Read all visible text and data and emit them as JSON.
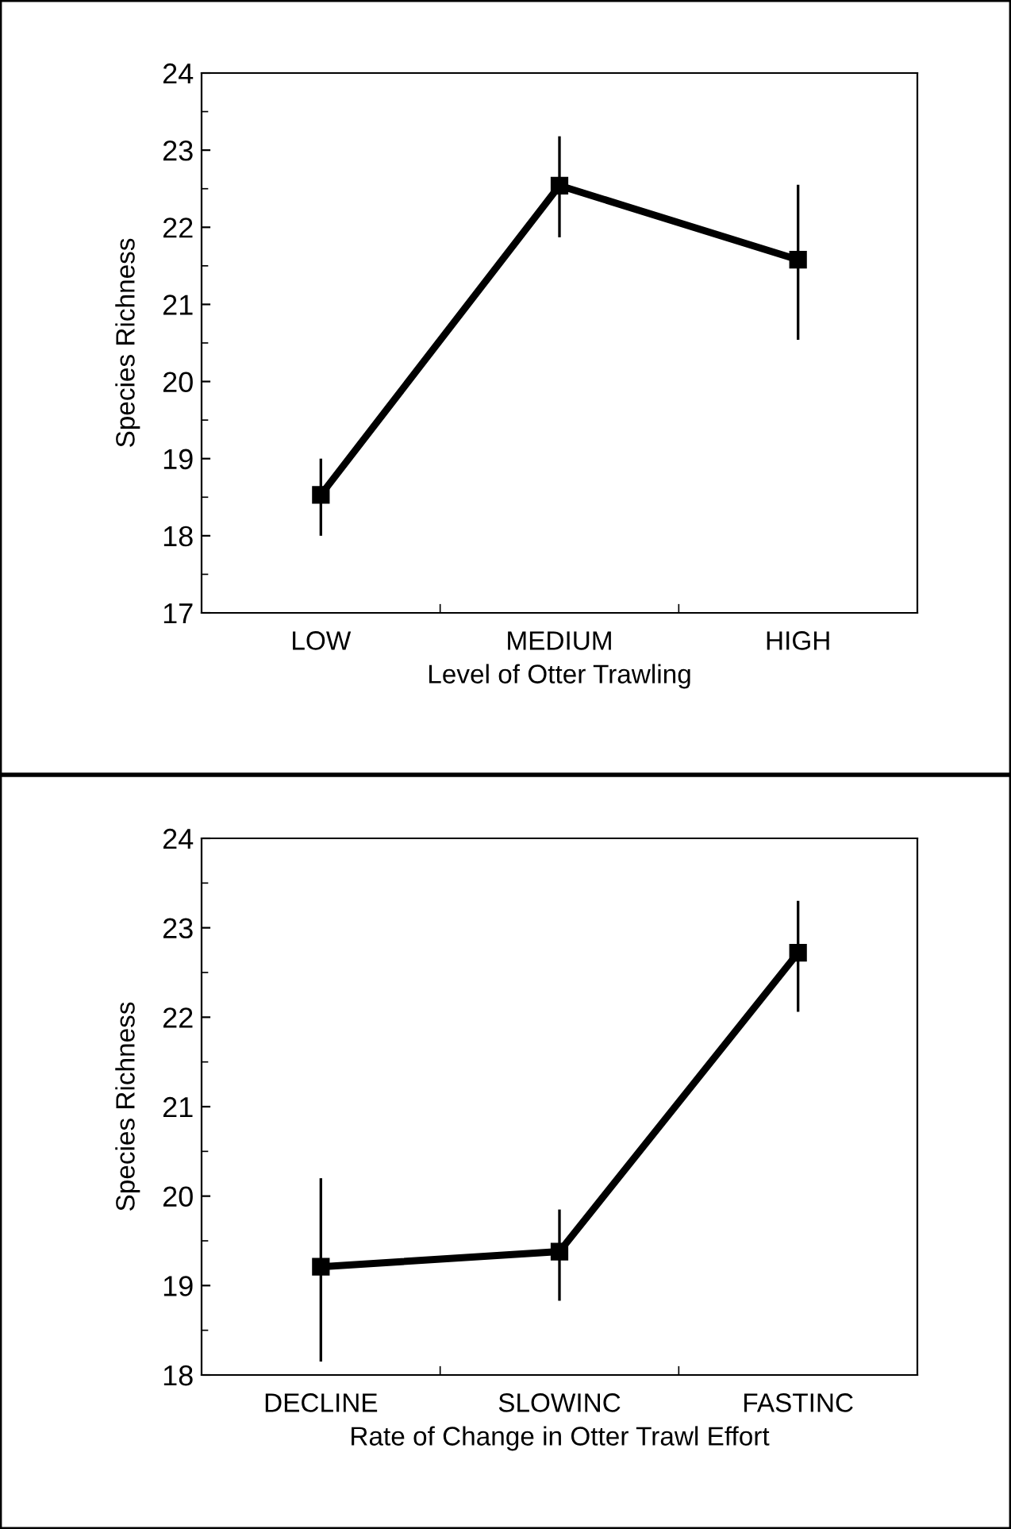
{
  "chart_data": [
    {
      "type": "line",
      "xlabel": "Level of Otter Trawling",
      "ylabel": "Species Richness",
      "categories": [
        "LOW",
        "MEDIUM",
        "HIGH"
      ],
      "series": [
        {
          "color": "#000000",
          "values": [
            18.53,
            22.54,
            21.58
          ],
          "errors": [
            [
              18.0,
              19.0
            ],
            [
              21.87,
              23.18
            ],
            [
              20.54,
              22.55
            ]
          ]
        }
      ],
      "ylim": [
        17,
        24
      ],
      "yticks": [
        17,
        18,
        19,
        20,
        21,
        22,
        23,
        24
      ],
      "marker": "square",
      "line_style": "solid",
      "grid": false,
      "legend": false
    },
    {
      "type": "line",
      "xlabel": "Rate of Change in Otter Trawl Effort",
      "ylabel": "Species Richness",
      "categories": [
        "DECLINE",
        "SLOWINC",
        "FASTINC"
      ],
      "series": [
        {
          "color": "#000000",
          "values": [
            19.21,
            19.38,
            22.72
          ],
          "errors": [
            [
              18.15,
              20.2
            ],
            [
              18.83,
              19.85
            ],
            [
              22.06,
              23.3
            ]
          ]
        }
      ],
      "ylim": [
        18,
        24
      ],
      "yticks": [
        18,
        19,
        20,
        21,
        22,
        23,
        24
      ],
      "marker": "square",
      "line_style": "solid",
      "grid": false,
      "legend": false
    }
  ]
}
